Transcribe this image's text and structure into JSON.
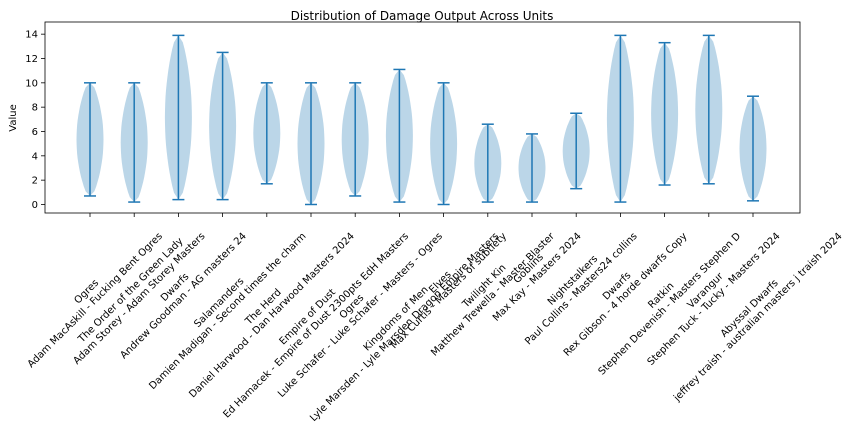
{
  "chart_data": {
    "type": "violin",
    "title": "Distribution of Damage Output Across Units",
    "ylabel": "Value",
    "categories": [
      [
        "Ogres",
        "Adam MacAskill - Fucking Bent Ogres"
      ],
      [
        "The Order of the Green Lady",
        "Adam Storey - Adam Storey Masters"
      ],
      [
        "Dwarfs",
        "Andrew Goodman - AG masters 24"
      ],
      [
        "Salamanders",
        "Damien Madigan - Second times the charm"
      ],
      [
        "The Herd",
        "Daniel Harwood - Dan Harwood Masters 2024"
      ],
      [
        "Empire of Dust",
        "Ed Hamacek - Empire of Dust 2300pts EdH Masters"
      ],
      [
        "Ogres",
        "Luke Schafer - Luke Schafer - Masters - Ogres"
      ],
      [
        "Kingdoms of Men",
        "Lyle Marsden - Lyle Marsden Dragon Empire Masters"
      ],
      [
        "Elves",
        "Max Curtis - Masters of subtlety"
      ],
      [
        "Twilight Kin",
        "Matthew Trewella - Master Blaster"
      ],
      [
        "Goblins",
        "Max Kay - Masters 2024"
      ],
      [
        "Nightstalkers",
        "Paul Collins - Masters24 collins"
      ],
      [
        "Dwarfs",
        "Rex Gibson - 4 horde dwarfs Copy"
      ],
      [
        "Ratkin",
        "Stephen Devenish - Masters Stephen D"
      ],
      [
        "Varangur",
        "Stephen Tuck - Tucky - Masters 2024"
      ],
      [
        "Abyssal Dwarfs",
        "jeffrey traish - australian masters j traish 2024"
      ]
    ],
    "mins": [
      0.7,
      0.2,
      0.4,
      0.4,
      1.7,
      0,
      0.7,
      0.2,
      0,
      0.2,
      0.2,
      1.3,
      0.2,
      1.6,
      1.7,
      0.3
    ],
    "maxs": [
      10,
      10,
      13.9,
      12.5,
      10,
      10,
      10,
      11.1,
      10,
      6.6,
      5.8,
      7.5,
      13.9,
      13.3,
      13.9,
      8.9
    ],
    "color": "#1f77b4",
    "ylim": [
      -0.7,
      15
    ],
    "yticks": [
      0,
      2,
      4,
      6,
      8,
      10,
      12,
      14
    ]
  }
}
